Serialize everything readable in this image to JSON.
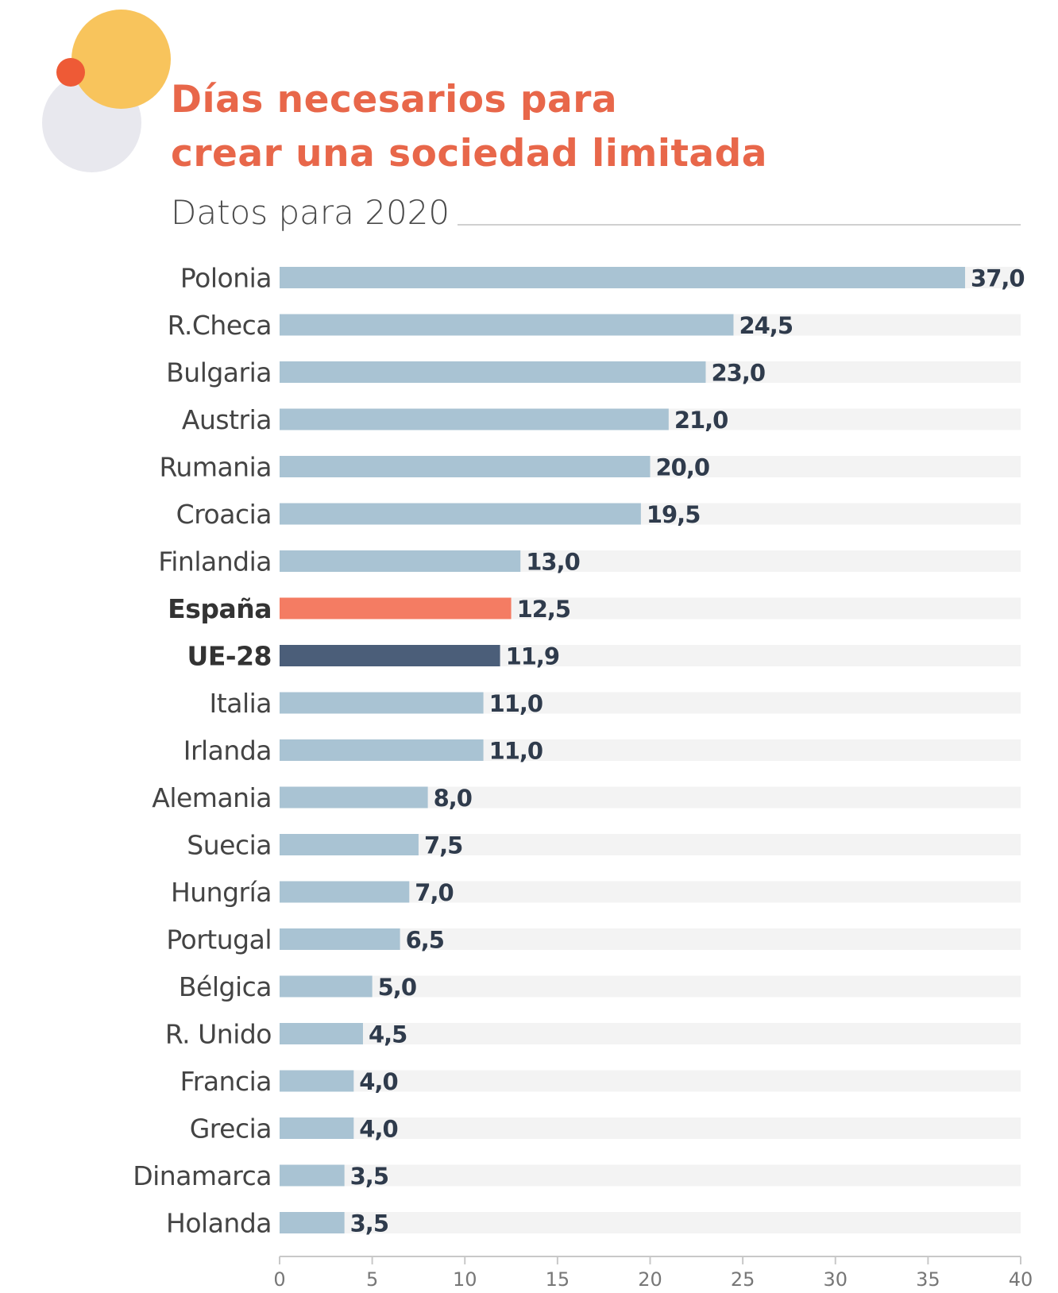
{
  "colors": {
    "bar": "#a9c3d3",
    "track": "#f3f3f3",
    "highlight_spain": "#f47c63",
    "highlight_eu": "#4b5e79",
    "title": "#e8674a",
    "label": "#3a3a3a",
    "value": "#2f3b4c",
    "deco_yellow": "#f8c45c",
    "deco_red": "#ee5a36",
    "deco_grey": "#e8e8ee"
  },
  "chart_data": {
    "type": "bar",
    "orientation": "horizontal",
    "title": "Días necesarios para crear una sociedad limitada",
    "subtitle": "Datos para 2020",
    "categories": [
      "Polonia",
      "R.Checa",
      "Bulgaria",
      "Austria",
      "Rumania",
      "Croacia",
      "Finlandia",
      "España",
      "UE-28",
      "Italia",
      "Irlanda",
      "Alemania",
      "Suecia",
      "Hungría",
      "Portugal",
      "Bélgica",
      "R. Unido",
      "Francia",
      "Grecia",
      "Dinamarca",
      "Holanda"
    ],
    "values": [
      37.0,
      24.5,
      23.0,
      21.0,
      20.0,
      19.5,
      13.0,
      12.5,
      11.9,
      11.0,
      11.0,
      8.0,
      7.5,
      7.0,
      6.5,
      5.0,
      4.5,
      4.0,
      4.0,
      3.5,
      3.5
    ],
    "value_labels": [
      "37,0",
      "24,5",
      "23,0",
      "21,0",
      "20,0",
      "19,5",
      "13,0",
      "12,5",
      "11,9",
      "11,0",
      "11,0",
      "8,0",
      "7,5",
      "7,0",
      "6,5",
      "5,0",
      "4,5",
      "4,0",
      "4,0",
      "3,5",
      "3,5"
    ],
    "highlighted": {
      "España": "highlight_spain",
      "UE-28": "highlight_eu"
    },
    "bold_labels": [
      "España",
      "UE-28"
    ],
    "xlim": [
      0,
      40
    ],
    "xticks": [
      0,
      5,
      10,
      15,
      20,
      25,
      30,
      35,
      40
    ],
    "xtick_labels": [
      "0",
      "5",
      "10",
      "15",
      "20",
      "25",
      "30",
      "35",
      "40"
    ],
    "xlabel": "",
    "ylabel": "",
    "grid": false,
    "legend": "none"
  }
}
